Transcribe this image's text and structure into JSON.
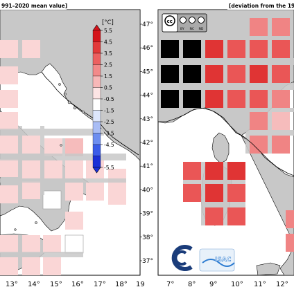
{
  "left_panel": {
    "title": "991–2020 mean value]",
    "lon_labels": [
      "13°",
      "14°",
      "15°",
      "16°",
      "17°",
      "18°",
      "19"
    ],
    "lat_labels": [
      "47°",
      "46°",
      "45°",
      "44°",
      "43°",
      "42°",
      "41°",
      "40°",
      "39°",
      "38°",
      "37°"
    ]
  },
  "right_panel": {
    "title": "[deviation from the 199",
    "lon_labels": [
      "7°",
      "8°",
      "9°",
      "10°",
      "11°",
      "12°"
    ],
    "license_badge": {
      "cc": "cc",
      "by": "BY",
      "nc": "NC",
      "nd": "ND"
    },
    "logo_text": "ISAC"
  },
  "colorbar": {
    "unit": "[°C]",
    "tick_labels": [
      "5.5",
      "4.5",
      "3.5",
      "2.5",
      "1.5",
      "0.5",
      "-0.5",
      "-1.5",
      "-2.5",
      "-3.5",
      "-4.5",
      "-5.5"
    ],
    "colors": [
      "#d4141a",
      "#e23a3a",
      "#ec6060",
      "#f28a8a",
      "#f7b8b8",
      "#fce4e4",
      "#ffffff",
      "#dde6fb",
      "#a9bdf5",
      "#6d8ef0",
      "#3a5ce8",
      "#1a2fd6"
    ]
  },
  "colors": {
    "sea": "#ffffff",
    "land": "#c8c8c8",
    "light_pink": "#fad6d6",
    "pink": "#f6bcbc",
    "red_mid": "#f08484",
    "red_strong": "#ea5656",
    "red_deep": "#e03434",
    "no_data": "#000000"
  },
  "anomaly_grid": {
    "description_levels": [
      "0.5-1.5",
      "1.5-2.5",
      "2.5-3.5",
      "3.5-4.5",
      "no data"
    ],
    "left_cells": [
      {
        "lon": 12.5,
        "lat": 46.0,
        "v": 1.0
      },
      {
        "lon": 11.0,
        "lat": 45.0,
        "v": 1.0
      },
      {
        "lon": 12.0,
        "lat": 45.0,
        "v": 1.0
      },
      {
        "lon": 11.5,
        "lat": 43.8,
        "v": 1.0
      },
      {
        "lon": 12.5,
        "lat": 43.8,
        "v": 1.0
      },
      {
        "lon": 12.0,
        "lat": 42.0,
        "v": 1.0
      },
      {
        "lon": 13.0,
        "lat": 42.0,
        "v": 1.0
      },
      {
        "lon": 14.0,
        "lat": 42.0,
        "v": 1.0
      },
      {
        "lon": 15.0,
        "lat": 42.0,
        "v": 1.5
      },
      {
        "lon": 16.0,
        "lat": 42.0,
        "v": 1.5
      }
    ]
  }
}
